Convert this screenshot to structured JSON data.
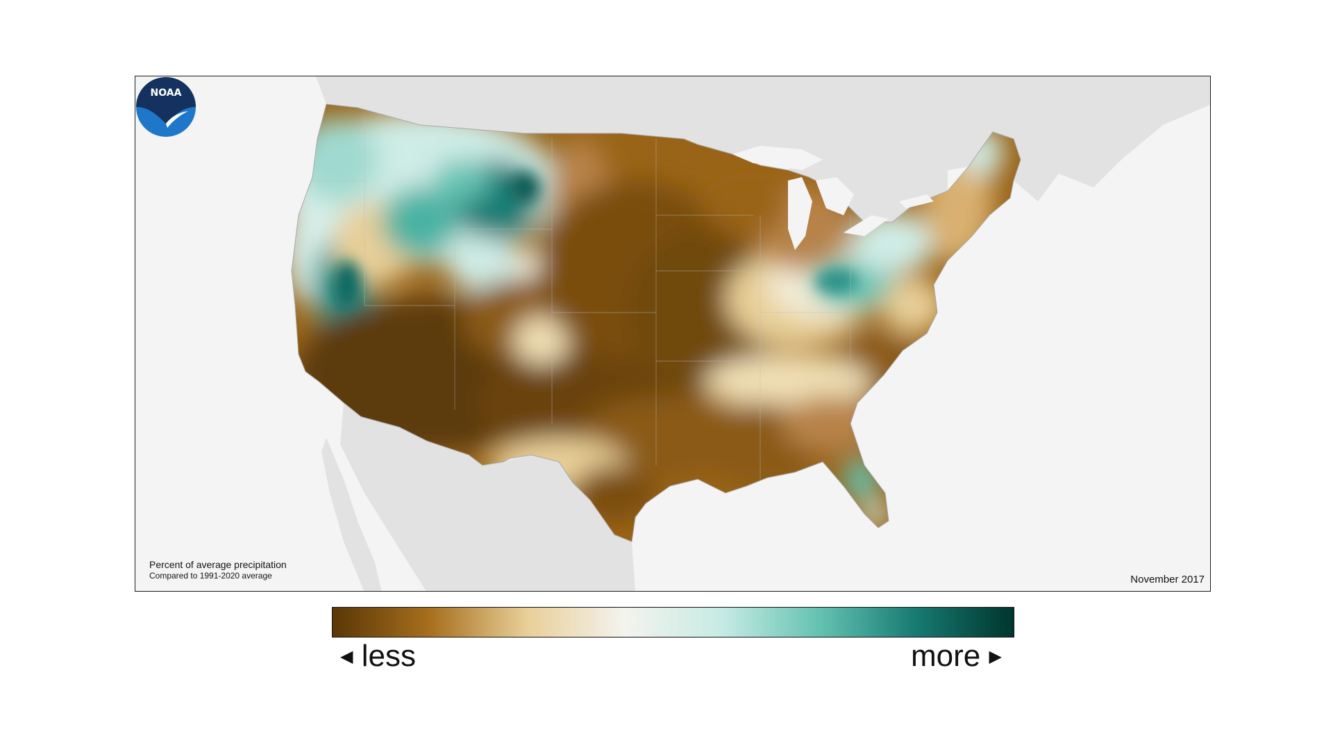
{
  "map": {
    "caption_title": "Percent of average precipitation",
    "caption_subtitle": "Compared to 1991-2020 average",
    "date": "November 2017",
    "logo_text": "NOAA",
    "colors": {
      "ocean": "#f4f4f4",
      "land_outside": "#e2e2e2",
      "much_drier": "#5c3a0a",
      "drier": "#9a6418",
      "slightly_drier": "#d9b070",
      "near_average": "#f3ecd8",
      "slightly_wetter": "#cfece6",
      "wetter": "#64c2b2",
      "much_wetter": "#177d74"
    }
  },
  "legend": {
    "less_label": "less",
    "more_label": "more",
    "gradient": [
      "#5a3706",
      "#a76f1e",
      "#e8cf98",
      "#f4f3ee",
      "#c6ebe4",
      "#64c2b2",
      "#177a72",
      "#00352d"
    ]
  }
}
